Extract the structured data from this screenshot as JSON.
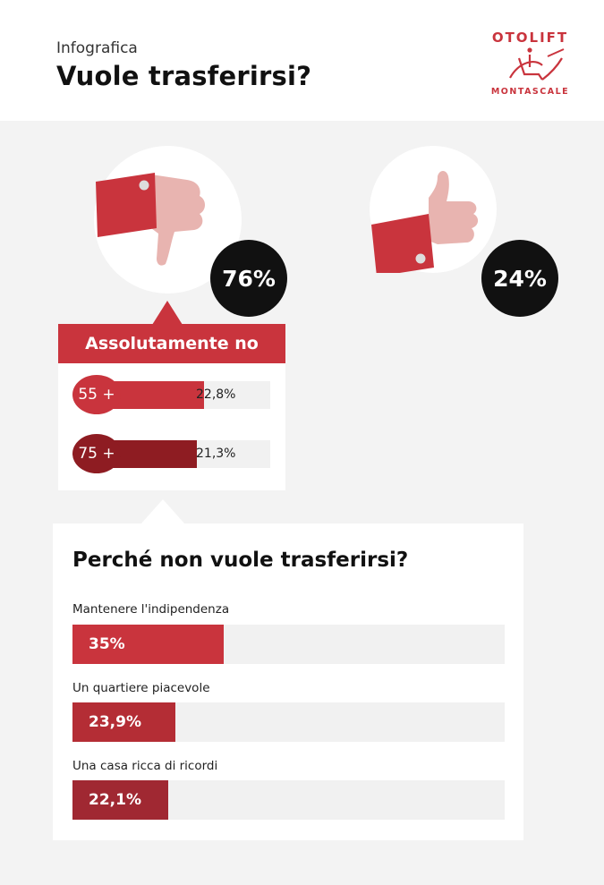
{
  "header": {
    "kicker": "Infografica",
    "title": "Vuole trasferirsi?"
  },
  "logo": {
    "brand": "OTOLIFT",
    "sub": "MONTASCALE",
    "color": "#c9343d"
  },
  "colors": {
    "red": "#c9343d",
    "red_mid": "#b42d35",
    "dark_red": "#8e1c22",
    "skin": "#e8b4b0",
    "badge": "#111111"
  },
  "icons": {
    "no": "thumbs-down-icon",
    "yes": "thumbs-up-icon"
  },
  "chart_data": [
    {
      "type": "bar",
      "categories": [
        "No",
        "Sì"
      ],
      "values": [
        76,
        24
      ],
      "value_labels": [
        "76%",
        "24%"
      ]
    },
    {
      "type": "bar",
      "title": "Assolutamente no",
      "categories": [
        "55 +",
        "75 +"
      ],
      "values": [
        22.8,
        21.3
      ],
      "value_labels": [
        "22,8%",
        "21,3%"
      ]
    },
    {
      "type": "bar",
      "title": "Perché non vuole trasferirsi?",
      "categories": [
        "Mantenere l'indipendenza",
        "Un quartiere piacevole",
        "Una casa ricca di ricordi"
      ],
      "values": [
        35,
        23.9,
        22.1
      ],
      "value_labels": [
        "35%",
        "23,9%",
        "22,1%"
      ],
      "ylim": [
        0,
        100
      ]
    }
  ]
}
